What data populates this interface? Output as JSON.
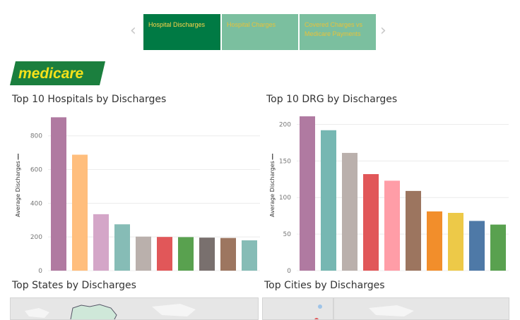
{
  "nav": {
    "tabs": [
      {
        "label": "Hospital Discharges"
      },
      {
        "label": "Hospital Charges"
      },
      {
        "label": "Covered Charges vs Medicare Payments"
      }
    ],
    "prev_icon": "chevron-left-icon",
    "next_icon": "chevron-right-icon"
  },
  "logo": {
    "text": "medicare",
    "bg": "#1b7f3e",
    "text_color": "#f4e11a"
  },
  "panels": {
    "hospitals_title": "Top 10 Hospitals by Discharges",
    "drg_title": "Top 10 DRG by Discharges",
    "states_title": "Top States by Discharges",
    "cities_title": "Top Cities by Discharges"
  },
  "chart_data": [
    {
      "type": "bar",
      "title": "Top 10 Hospitals by Discharges",
      "ylabel": "Average Discharges",
      "ylim": [
        0,
        920
      ],
      "yticks": [
        0,
        200,
        400,
        600,
        800
      ],
      "values": [
        910,
        688,
        335,
        275,
        202,
        200,
        199,
        196,
        194,
        180
      ],
      "colors": [
        "#b07aa1",
        "#ffbe7d",
        "#d4a6c8",
        "#86bcb6",
        "#bab0ac",
        "#e15759",
        "#59a14f",
        "#79706e",
        "#9d7660",
        "#86bcb6"
      ]
    },
    {
      "type": "bar",
      "title": "Top 10 DRG by Discharges",
      "ylabel": "Average Discharges",
      "ylim": [
        0,
        212
      ],
      "yticks": [
        0,
        50,
        100,
        150,
        200
      ],
      "values": [
        211,
        192,
        161,
        132,
        123,
        109,
        81,
        79,
        68,
        63
      ],
      "colors": [
        "#b07aa1",
        "#76b7b2",
        "#bab0ac",
        "#e15759",
        "#ff9da7",
        "#9c755f",
        "#f28e2b",
        "#edc948",
        "#4e79a7",
        "#59a14f"
      ]
    }
  ]
}
